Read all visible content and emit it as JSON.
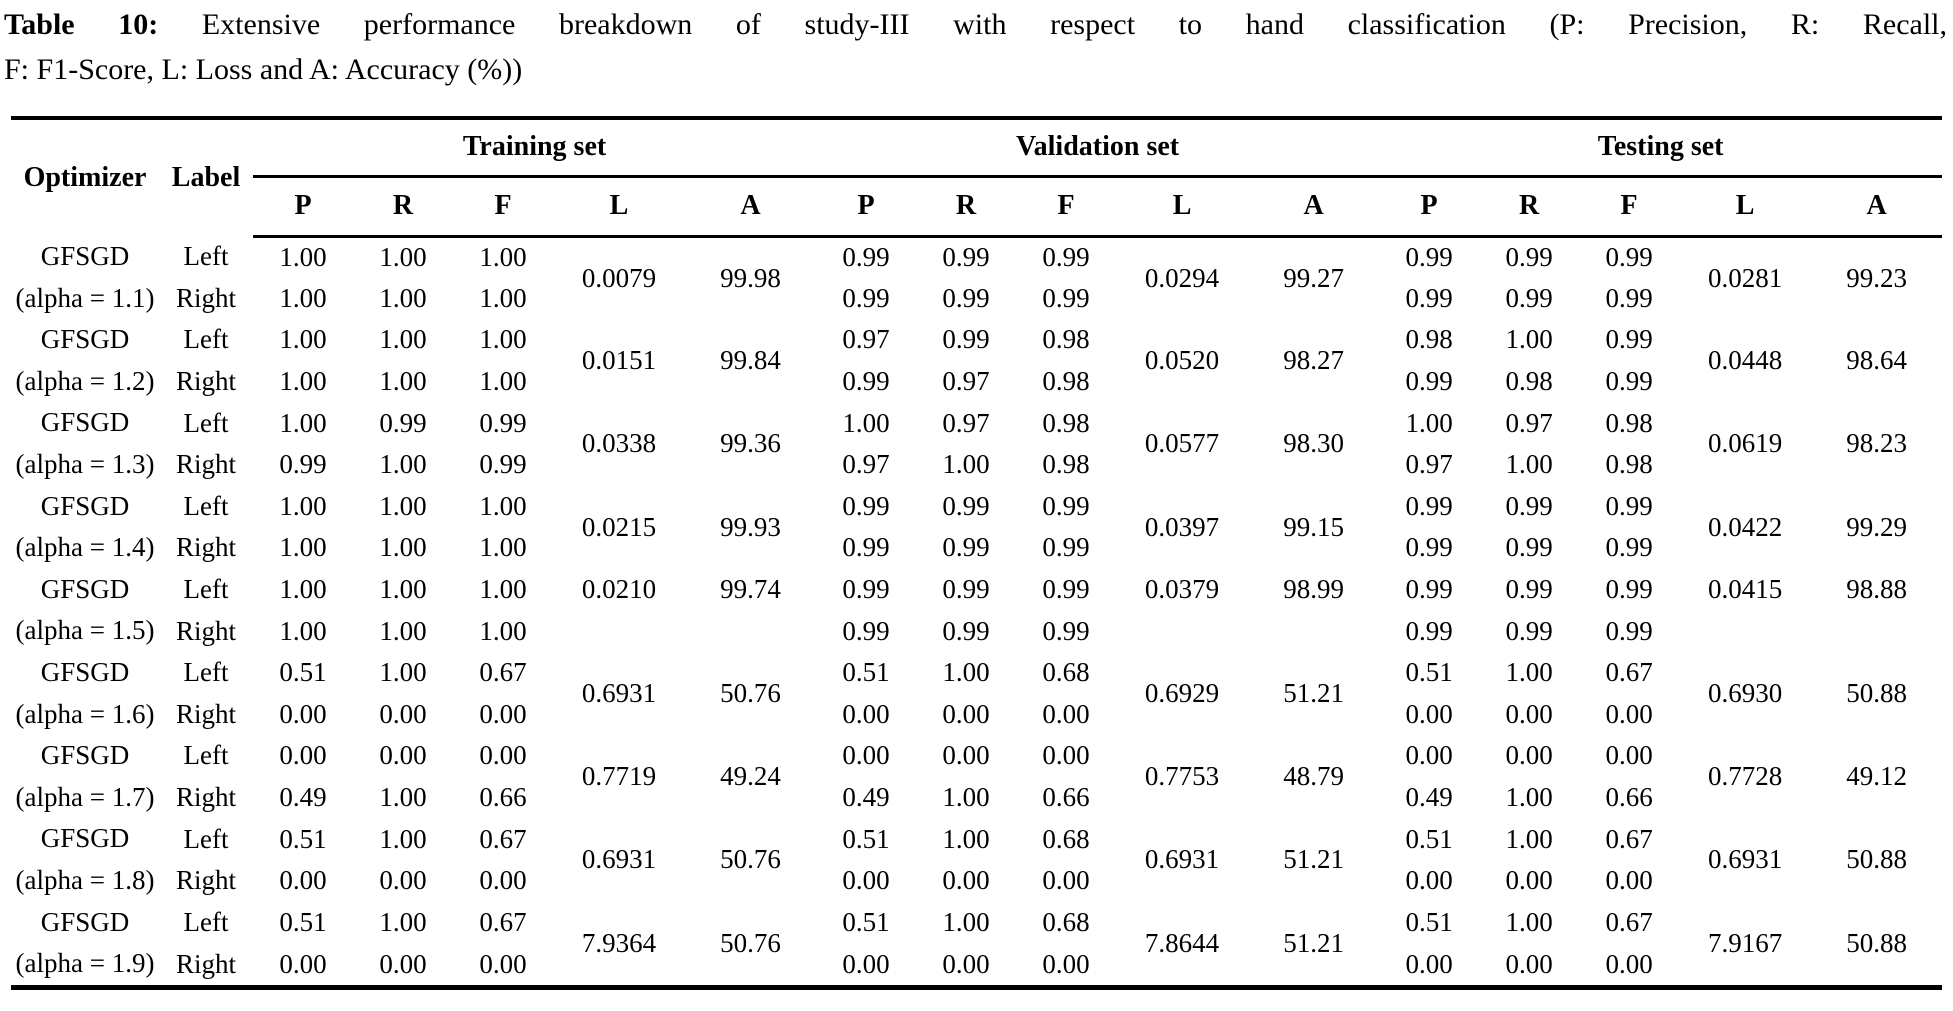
{
  "colors": {
    "text": "#000000",
    "background": "#ffffff"
  },
  "caption": {
    "prefix": "Table 10:",
    "line1_rest": "Extensive performance breakdown of study-III with respect to hand classification (P: Precision, R: Recall,",
    "line2": "F: F1-Score, L: Loss and A: Accuracy (%))"
  },
  "table": {
    "col_optimizer": "Optimizer",
    "col_label": "Label",
    "groups": [
      {
        "label": "Training set"
      },
      {
        "label": "Validation set"
      },
      {
        "label": "Testing set"
      }
    ],
    "metric_headers": [
      "P",
      "R",
      "F",
      "L",
      "A"
    ],
    "rows": [
      {
        "optimizer_line1": "GFSGD",
        "optimizer_line2": "(alpha = 1.1)",
        "labels": [
          "Left",
          "Right"
        ],
        "la_align": "middle",
        "training": {
          "left": [
            "1.00",
            "1.00",
            "1.00"
          ],
          "right": [
            "1.00",
            "1.00",
            "1.00"
          ],
          "loss": "0.0079",
          "acc": "99.98"
        },
        "validation": {
          "left": [
            "0.99",
            "0.99",
            "0.99"
          ],
          "right": [
            "0.99",
            "0.99",
            "0.99"
          ],
          "loss": "0.0294",
          "acc": "99.27"
        },
        "testing": {
          "left": [
            "0.99",
            "0.99",
            "0.99"
          ],
          "right": [
            "0.99",
            "0.99",
            "0.99"
          ],
          "loss": "0.0281",
          "acc": "99.23"
        }
      },
      {
        "optimizer_line1": "GFSGD",
        "optimizer_line2": "(alpha = 1.2)",
        "labels": [
          "Left",
          "Right"
        ],
        "la_align": "middle",
        "training": {
          "left": [
            "1.00",
            "1.00",
            "1.00"
          ],
          "right": [
            "1.00",
            "1.00",
            "1.00"
          ],
          "loss": "0.0151",
          "acc": "99.84"
        },
        "validation": {
          "left": [
            "0.97",
            "0.99",
            "0.98"
          ],
          "right": [
            "0.99",
            "0.97",
            "0.98"
          ],
          "loss": "0.0520",
          "acc": "98.27"
        },
        "testing": {
          "left": [
            "0.98",
            "1.00",
            "0.99"
          ],
          "right": [
            "0.99",
            "0.98",
            "0.99"
          ],
          "loss": "0.0448",
          "acc": "98.64"
        }
      },
      {
        "optimizer_line1": "GFSGD",
        "optimizer_line2": "(alpha = 1.3)",
        "labels": [
          "Left",
          "Right"
        ],
        "la_align": "middle",
        "training": {
          "left": [
            "1.00",
            "0.99",
            "0.99"
          ],
          "right": [
            "0.99",
            "1.00",
            "0.99"
          ],
          "loss": "0.0338",
          "acc": "99.36"
        },
        "validation": {
          "left": [
            "1.00",
            "0.97",
            "0.98"
          ],
          "right": [
            "0.97",
            "1.00",
            "0.98"
          ],
          "loss": "0.0577",
          "acc": "98.30"
        },
        "testing": {
          "left": [
            "1.00",
            "0.97",
            "0.98"
          ],
          "right": [
            "0.97",
            "1.00",
            "0.98"
          ],
          "loss": "0.0619",
          "acc": "98.23"
        }
      },
      {
        "optimizer_line1": "GFSGD",
        "optimizer_line2": "(alpha = 1.4)",
        "labels": [
          "Left",
          "Right"
        ],
        "la_align": "middle",
        "training": {
          "left": [
            "1.00",
            "1.00",
            "1.00"
          ],
          "right": [
            "1.00",
            "1.00",
            "1.00"
          ],
          "loss": "0.0215",
          "acc": "99.93"
        },
        "validation": {
          "left": [
            "0.99",
            "0.99",
            "0.99"
          ],
          "right": [
            "0.99",
            "0.99",
            "0.99"
          ],
          "loss": "0.0397",
          "acc": "99.15"
        },
        "testing": {
          "left": [
            "0.99",
            "0.99",
            "0.99"
          ],
          "right": [
            "0.99",
            "0.99",
            "0.99"
          ],
          "loss": "0.0422",
          "acc": "99.29"
        }
      },
      {
        "optimizer_line1": "GFSGD",
        "optimizer_line2": "(alpha = 1.5)",
        "labels": [
          "Left",
          "Right"
        ],
        "la_align": "top",
        "training": {
          "left": [
            "1.00",
            "1.00",
            "1.00"
          ],
          "right": [
            "1.00",
            "1.00",
            "1.00"
          ],
          "loss": "0.0210",
          "acc": "99.74"
        },
        "validation": {
          "left": [
            "0.99",
            "0.99",
            "0.99"
          ],
          "right": [
            "0.99",
            "0.99",
            "0.99"
          ],
          "loss": "0.0379",
          "acc": "98.99"
        },
        "testing": {
          "left": [
            "0.99",
            "0.99",
            "0.99"
          ],
          "right": [
            "0.99",
            "0.99",
            "0.99"
          ],
          "loss": "0.0415",
          "acc": "98.88"
        }
      },
      {
        "optimizer_line1": "GFSGD",
        "optimizer_line2": "(alpha = 1.6)",
        "labels": [
          "Left",
          "Right"
        ],
        "la_align": "middle",
        "training": {
          "left": [
            "0.51",
            "1.00",
            "0.67"
          ],
          "right": [
            "0.00",
            "0.00",
            "0.00"
          ],
          "loss": "0.6931",
          "acc": "50.76"
        },
        "validation": {
          "left": [
            "0.51",
            "1.00",
            "0.68"
          ],
          "right": [
            "0.00",
            "0.00",
            "0.00"
          ],
          "loss": "0.6929",
          "acc": "51.21"
        },
        "testing": {
          "left": [
            "0.51",
            "1.00",
            "0.67"
          ],
          "right": [
            "0.00",
            "0.00",
            "0.00"
          ],
          "loss": "0.6930",
          "acc": "50.88"
        }
      },
      {
        "optimizer_line1": "GFSGD",
        "optimizer_line2": "(alpha = 1.7)",
        "labels": [
          "Left",
          "Right"
        ],
        "la_align": "middle",
        "training": {
          "left": [
            "0.00",
            "0.00",
            "0.00"
          ],
          "right": [
            "0.49",
            "1.00",
            "0.66"
          ],
          "loss": "0.7719",
          "acc": "49.24"
        },
        "validation": {
          "left": [
            "0.00",
            "0.00",
            "0.00"
          ],
          "right": [
            "0.49",
            "1.00",
            "0.66"
          ],
          "loss": "0.7753",
          "acc": "48.79"
        },
        "testing": {
          "left": [
            "0.00",
            "0.00",
            "0.00"
          ],
          "right": [
            "0.49",
            "1.00",
            "0.66"
          ],
          "loss": "0.7728",
          "acc": "49.12"
        }
      },
      {
        "optimizer_line1": "GFSGD",
        "optimizer_line2": "(alpha = 1.8)",
        "labels": [
          "Left",
          "Right"
        ],
        "la_align": "middle",
        "training": {
          "left": [
            "0.51",
            "1.00",
            "0.67"
          ],
          "right": [
            "0.00",
            "0.00",
            "0.00"
          ],
          "loss": "0.6931",
          "acc": "50.76"
        },
        "validation": {
          "left": [
            "0.51",
            "1.00",
            "0.68"
          ],
          "right": [
            "0.00",
            "0.00",
            "0.00"
          ],
          "loss": "0.6931",
          "acc": "51.21"
        },
        "testing": {
          "left": [
            "0.51",
            "1.00",
            "0.67"
          ],
          "right": [
            "0.00",
            "0.00",
            "0.00"
          ],
          "loss": "0.6931",
          "acc": "50.88"
        }
      },
      {
        "optimizer_line1": "GFSGD",
        "optimizer_line2": "(alpha = 1.9)",
        "labels": [
          "Left",
          "Right"
        ],
        "la_align": "middle",
        "training": {
          "left": [
            "0.51",
            "1.00",
            "0.67"
          ],
          "right": [
            "0.00",
            "0.00",
            "0.00"
          ],
          "loss": "7.9364",
          "acc": "50.76"
        },
        "validation": {
          "left": [
            "0.51",
            "1.00",
            "0.68"
          ],
          "right": [
            "0.00",
            "0.00",
            "0.00"
          ],
          "loss": "7.8644",
          "acc": "51.21"
        },
        "testing": {
          "left": [
            "0.51",
            "1.00",
            "0.67"
          ],
          "right": [
            "0.00",
            "0.00",
            "0.00"
          ],
          "loss": "7.9167",
          "acc": "50.88"
        }
      }
    ]
  }
}
